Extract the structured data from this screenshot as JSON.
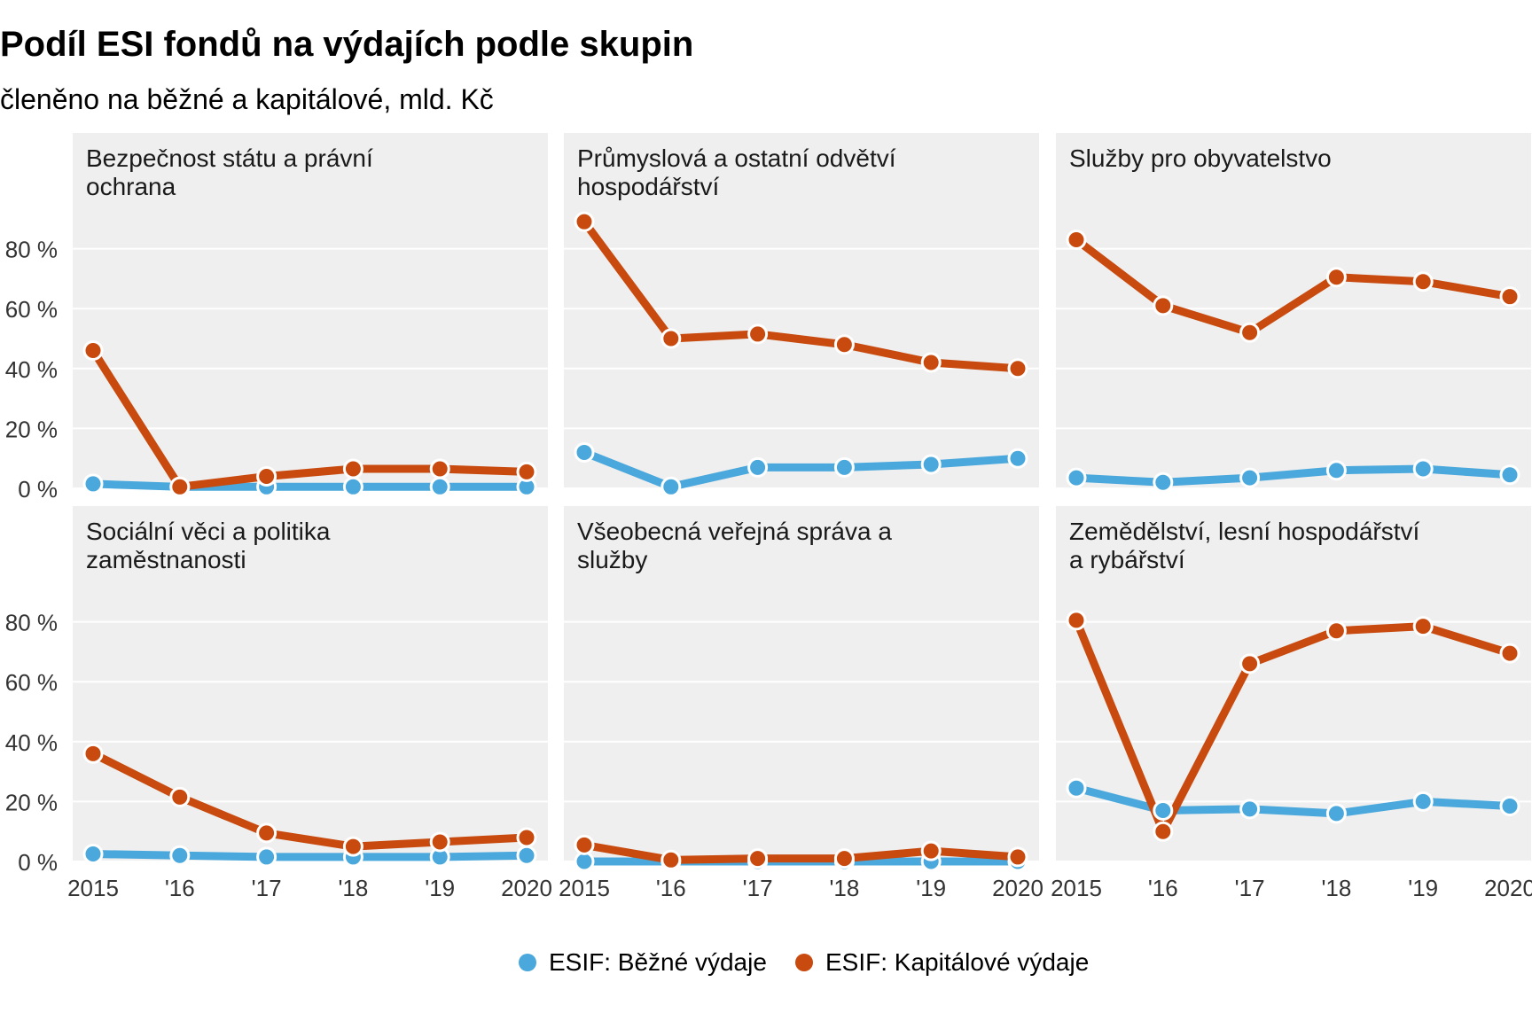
{
  "title": "Podíl ESI fondů na výdajích podle skupin",
  "subtitle": "členěno na běžné a kapitálové, mld. Kč",
  "colors": {
    "bezne": "#4aa8dc",
    "kapitalove": "#c84a0e",
    "panel_bg": "#efefef",
    "grid": "#ffffff"
  },
  "chart_data": {
    "type": "line",
    "layout": "small-multiples 3x2",
    "x": [
      "2015",
      "'16",
      "'17",
      "'18",
      "'19",
      "2020"
    ],
    "y_ticks": [
      "0 %",
      "20 %",
      "40 %",
      "60 %",
      "80 %"
    ],
    "ylim": [
      0,
      100
    ],
    "legend_position": "bottom",
    "series_names": [
      "ESIF: Běžné výdaje",
      "ESIF: Kapitálové výdaje"
    ],
    "panels": [
      {
        "title": [
          "Bezpečnost státu a právní",
          "ochrana"
        ],
        "series": [
          {
            "name": "ESIF: Běžné výdaje",
            "values": [
              1.5,
              0.5,
              0.5,
              0.5,
              0.5,
              0.5
            ]
          },
          {
            "name": "ESIF: Kapitálové výdaje",
            "values": [
              46,
              0.5,
              4,
              6.5,
              6.5,
              5.5
            ]
          }
        ]
      },
      {
        "title": [
          "Průmyslová a ostatní odvětví",
          "hospodářství"
        ],
        "series": [
          {
            "name": "ESIF: Běžné výdaje",
            "values": [
              12,
              0.5,
              7,
              7,
              8,
              10
            ]
          },
          {
            "name": "ESIF: Kapitálové výdaje",
            "values": [
              89,
              50,
              51.5,
              48,
              42,
              40
            ]
          }
        ]
      },
      {
        "title": [
          "Služby pro obyvatelstvo"
        ],
        "series": [
          {
            "name": "ESIF: Běžné výdaje",
            "values": [
              3.5,
              2,
              3.5,
              6,
              6.5,
              4.5
            ]
          },
          {
            "name": "ESIF: Kapitálové výdaje",
            "values": [
              83,
              61,
              52,
              70.5,
              69,
              64
            ]
          }
        ]
      },
      {
        "title": [
          "Sociální věci a politika",
          "zaměstnanosti"
        ],
        "series": [
          {
            "name": "ESIF: Běžné výdaje",
            "values": [
              2.5,
              2,
              1.5,
              1.5,
              1.5,
              2
            ]
          },
          {
            "name": "ESIF: Kapitálové výdaje",
            "values": [
              36,
              21.5,
              9.5,
              5,
              6.5,
              8
            ]
          }
        ]
      },
      {
        "title": [
          "Všeobecná veřejná správa a",
          "služby"
        ],
        "series": [
          {
            "name": "ESIF: Běžné výdaje",
            "values": [
              0,
              0,
              0,
              0,
              0,
              0
            ]
          },
          {
            "name": "ESIF: Kapitálové výdaje",
            "values": [
              5.5,
              0.5,
              1,
              1,
              3.5,
              1.5
            ]
          }
        ]
      },
      {
        "title": [
          "Zemědělství, lesní hospodářství",
          "a rybářství"
        ],
        "series": [
          {
            "name": "ESIF: Běžné výdaje",
            "values": [
              24.5,
              17,
              17.5,
              16,
              20,
              18.5
            ]
          },
          {
            "name": "ESIF: Kapitálové výdaje",
            "values": [
              80.5,
              10,
              66,
              77,
              78.5,
              69.5
            ]
          }
        ]
      }
    ]
  }
}
